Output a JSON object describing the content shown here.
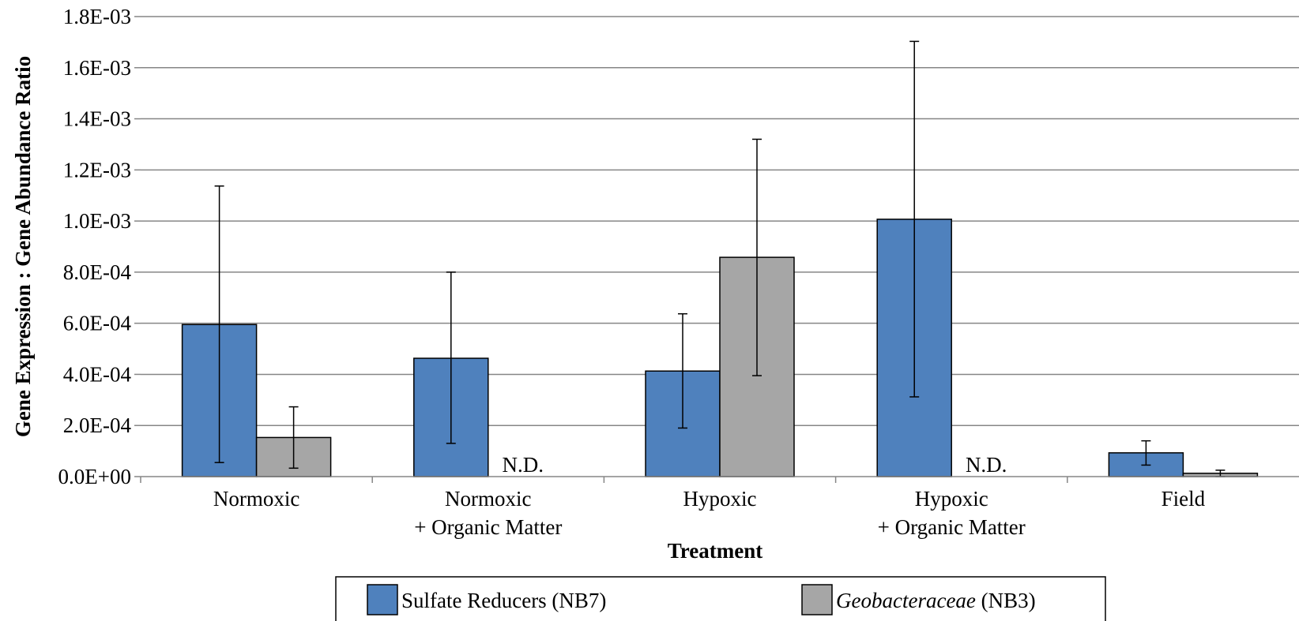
{
  "chart_data": {
    "type": "bar",
    "xlabel": "Treatment",
    "ylabel": "Gene Expression : Gene Abundance Ratio",
    "ylim": [
      0,
      0.0018
    ],
    "yticks": [
      "0.0E+00",
      "2.0E-04",
      "4.0E-04",
      "6.0E-04",
      "8.0E-04",
      "1.0E-03",
      "1.2E-03",
      "1.4E-03",
      "1.6E-03",
      "1.8E-03"
    ],
    "grid": true,
    "legend_position": "bottom",
    "categories": [
      [
        "Normoxic"
      ],
      [
        "Normoxic",
        "+ Organic Matter"
      ],
      [
        "Hypoxic"
      ],
      [
        "Hypoxic",
        "+ Organic Matter"
      ],
      [
        "Field"
      ]
    ],
    "series": [
      {
        "name": "Sulfate Reducers (NB7)",
        "color": "#4f81bd",
        "values": [
          0.000595,
          0.000463,
          0.000413,
          0.001007,
          9.3e-05
        ],
        "err_low": [
          5.5e-05,
          0.00013,
          0.00019,
          0.000312,
          4.5e-05
        ],
        "err_high": [
          0.001137,
          0.0008,
          0.000637,
          0.001703,
          0.00014
        ],
        "nd": [
          false,
          false,
          false,
          false,
          false
        ]
      },
      {
        "name_parts": [
          {
            "text": "Geobacteraceae",
            "italic": true
          },
          {
            "text": " (NB3)",
            "italic": false
          }
        ],
        "color": "#a6a6a6",
        "values": [
          0.000153,
          0,
          0.000858,
          0,
          1.3e-05
        ],
        "err_low": [
          3.3e-05,
          null,
          0.000395,
          null,
          0.0
        ],
        "err_high": [
          0.000273,
          null,
          0.00132,
          null,
          2.5e-05
        ],
        "nd": [
          false,
          true,
          false,
          true,
          false
        ]
      }
    ],
    "nd_label": "N.D."
  }
}
